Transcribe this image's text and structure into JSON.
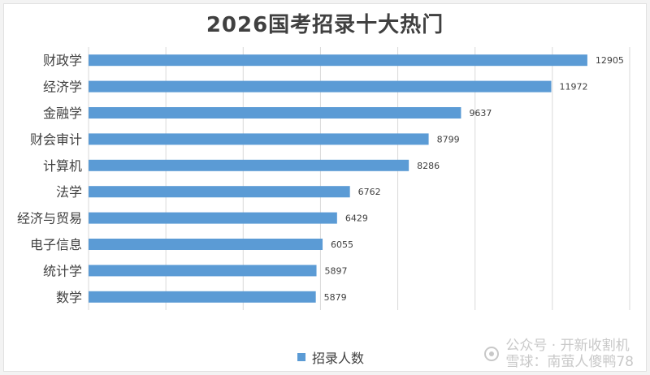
{
  "chart_data": {
    "type": "bar",
    "orientation": "horizontal",
    "title": "2026国考招录十大热门",
    "categories": [
      "财政学",
      "经济学",
      "金融学",
      "财会审计",
      "计算机",
      "法学",
      "经济与贸易",
      "电子信息",
      "统计学",
      "数学"
    ],
    "series": [
      {
        "name": "招录人数",
        "values": [
          12905,
          11972,
          9637,
          8799,
          8286,
          6762,
          6429,
          6055,
          5897,
          5879
        ],
        "color": "#5b9bd5"
      }
    ],
    "xlim": [
      0,
      14000
    ],
    "grid": true,
    "legend_position": "bottom",
    "xlabel": "",
    "ylabel": ""
  },
  "colors": {
    "bar": "#5b9bd5",
    "grid": "#d9d9d9",
    "text": "#404040"
  },
  "watermark": {
    "line1": "公众号 · 开新收割机",
    "line2": "雪球：南萤人傻鸭78"
  }
}
